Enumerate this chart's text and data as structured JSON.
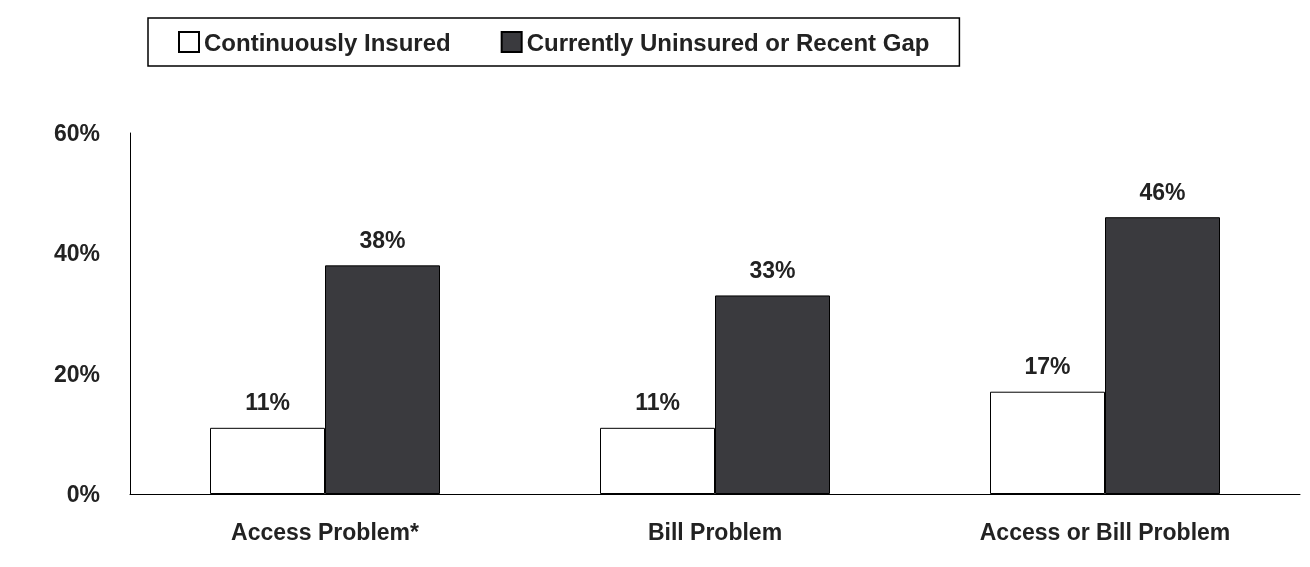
{
  "chart_data": {
    "type": "bar",
    "categories": [
      "Access Problem*",
      "Bill Problem",
      "Access or Bill Problem"
    ],
    "series": [
      {
        "name": "Continuously Insured",
        "color": "#ffffff",
        "values": [
          11,
          11,
          17
        ],
        "value_labels": [
          "11%",
          "11%",
          "17%"
        ]
      },
      {
        "name": "Currently Uninsured or Recent Gap",
        "color": "#3a3a3e",
        "values": [
          38,
          33,
          46
        ],
        "value_labels": [
          "38%",
          "33%",
          "46%"
        ]
      }
    ],
    "ylim": [
      0,
      60
    ],
    "yticks": [
      {
        "value": 0,
        "label": "0%"
      },
      {
        "value": 20,
        "label": "20%"
      },
      {
        "value": 40,
        "label": "40%"
      },
      {
        "value": 60,
        "label": "60%"
      }
    ],
    "grid": false,
    "legend": "top"
  }
}
